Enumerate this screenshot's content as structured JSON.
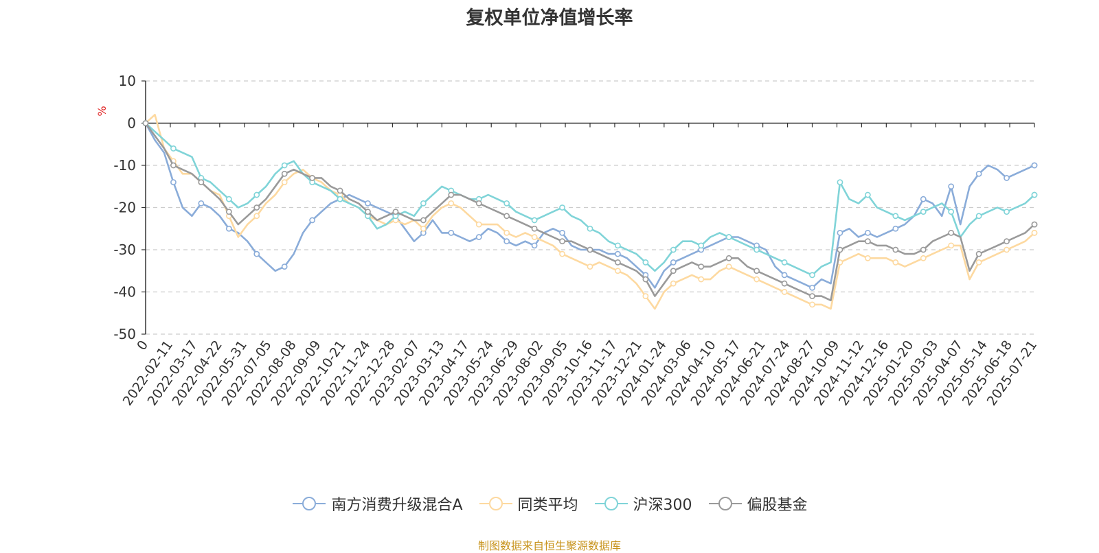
{
  "title": "复权单位净值增长率",
  "footer": "制图数据来自恒生聚源数据库",
  "colors": {
    "nanfang": "#8aacd9",
    "tonglei": "#fdd9a0",
    "hs300": "#80d4d8",
    "pian": "#9a9a9a",
    "unit": "#e02020"
  },
  "chart_data": {
    "type": "line",
    "title": "复权单位净值增长率",
    "ylabel": "%",
    "ylim": [
      -50,
      10
    ],
    "yticks": [
      10,
      0,
      -10,
      -20,
      -30,
      -40,
      -50
    ],
    "grid": true,
    "legend_position": "bottom",
    "x_tick_labels": [
      "0",
      "2022-02-11",
      "2022-03-17",
      "2022-04-22",
      "2022-05-31",
      "2022-07-05",
      "2022-08-08",
      "2022-09-09",
      "2022-10-21",
      "2022-11-24",
      "2022-12-28",
      "2023-02-07",
      "2023-03-13",
      "2023-04-17",
      "2023-05-24",
      "2023-06-29",
      "2023-08-02",
      "2023-09-05",
      "2023-10-16",
      "2023-11-17",
      "2023-12-21",
      "2024-01-24",
      "2024-03-06",
      "2024-04-10",
      "2024-05-17",
      "2024-06-21",
      "2024-07-24",
      "2024-08-27",
      "2024-10-09",
      "2024-11-12",
      "2024-12-16",
      "2025-01-20",
      "2025-03-03",
      "2025-04-07",
      "2025-05-14",
      "2025-06-18",
      "2025-07-21"
    ],
    "series": [
      {
        "name": "南方消费升级混合A",
        "color_key": "nanfang",
        "values": [
          0,
          -4,
          -7,
          -14,
          -20,
          -22,
          -19,
          -20,
          -22,
          -25,
          -26,
          -28,
          -31,
          -33,
          -35,
          -34,
          -31,
          -26,
          -23,
          -21,
          -19,
          -18,
          -17,
          -18,
          -19,
          -20,
          -21,
          -22,
          -25,
          -28,
          -26,
          -23,
          -26,
          -26,
          -27,
          -28,
          -27,
          -25,
          -26,
          -28,
          -29,
          -28,
          -29,
          -26,
          -25,
          -26,
          -29,
          -30,
          -30,
          -30,
          -31,
          -31,
          -32,
          -34,
          -36,
          -39,
          -35,
          -33,
          -32,
          -31,
          -30,
          -29,
          -28,
          -27,
          -27,
          -28,
          -29,
          -30,
          -34,
          -36,
          -37,
          -38,
          -39,
          -37,
          -38,
          -26,
          -25,
          -27,
          -26,
          -27,
          -26,
          -25,
          -24,
          -22,
          -18,
          -19,
          -22,
          -15,
          -24,
          -15,
          -12,
          -10,
          -11,
          -13,
          -12,
          -11,
          -10
        ]
      },
      {
        "name": "同类平均",
        "color_key": "tonglei",
        "values": [
          0,
          2,
          -6,
          -9,
          -12,
          -12,
          -14,
          -16,
          -17,
          -22,
          -27,
          -24,
          -22,
          -19,
          -17,
          -14,
          -12,
          -11,
          -13,
          -14,
          -16,
          -17,
          -19,
          -20,
          -22,
          -23,
          -24,
          -23,
          -24,
          -23,
          -25,
          -22,
          -20,
          -19,
          -20,
          -22,
          -24,
          -24,
          -24,
          -26,
          -27,
          -26,
          -27,
          -28,
          -29,
          -31,
          -32,
          -33,
          -34,
          -33,
          -34,
          -35,
          -36,
          -38,
          -41,
          -44,
          -40,
          -38,
          -37,
          -36,
          -37,
          -37,
          -35,
          -34,
          -35,
          -36,
          -37,
          -38,
          -39,
          -40,
          -41,
          -42,
          -43,
          -43,
          -44,
          -33,
          -32,
          -31,
          -32,
          -32,
          -32,
          -33,
          -34,
          -33,
          -32,
          -31,
          -30,
          -29,
          -29,
          -37,
          -33,
          -32,
          -31,
          -30,
          -29,
          -28,
          -26
        ]
      },
      {
        "name": "沪深300",
        "color_key": "hs300",
        "values": [
          0,
          -2,
          -4,
          -6,
          -7,
          -8,
          -13,
          -14,
          -16,
          -18,
          -20,
          -19,
          -17,
          -15,
          -12,
          -10,
          -9,
          -12,
          -14,
          -15,
          -16,
          -18,
          -19,
          -20,
          -22,
          -25,
          -24,
          -22,
          -21,
          -22,
          -19,
          -17,
          -15,
          -16,
          -17,
          -18,
          -18,
          -17,
          -18,
          -19,
          -21,
          -22,
          -23,
          -22,
          -21,
          -20,
          -22,
          -23,
          -25,
          -26,
          -28,
          -29,
          -30,
          -31,
          -33,
          -35,
          -33,
          -30,
          -28,
          -28,
          -29,
          -27,
          -26,
          -27,
          -28,
          -29,
          -30,
          -31,
          -32,
          -33,
          -34,
          -35,
          -36,
          -34,
          -33,
          -14,
          -18,
          -19,
          -17,
          -20,
          -21,
          -22,
          -23,
          -22,
          -21,
          -20,
          -19,
          -21,
          -27,
          -24,
          -22,
          -21,
          -20,
          -21,
          -20,
          -19,
          -17
        ]
      },
      {
        "name": "偏股基金",
        "color_key": "pian",
        "values": [
          0,
          -3,
          -6,
          -10,
          -11,
          -12,
          -14,
          -16,
          -18,
          -21,
          -24,
          -22,
          -20,
          -18,
          -15,
          -12,
          -11,
          -12,
          -13,
          -13,
          -15,
          -16,
          -18,
          -19,
          -21,
          -23,
          -22,
          -21,
          -22,
          -23,
          -23,
          -21,
          -19,
          -17,
          -17,
          -18,
          -19,
          -20,
          -21,
          -22,
          -23,
          -24,
          -25,
          -26,
          -27,
          -28,
          -28,
          -29,
          -30,
          -31,
          -32,
          -33,
          -34,
          -35,
          -37,
          -41,
          -38,
          -35,
          -34,
          -33,
          -34,
          -34,
          -33,
          -32,
          -32,
          -34,
          -35,
          -36,
          -37,
          -38,
          -39,
          -40,
          -41,
          -41,
          -42,
          -30,
          -29,
          -28,
          -28,
          -29,
          -29,
          -30,
          -31,
          -31,
          -30,
          -28,
          -27,
          -26,
          -27,
          -35,
          -31,
          -30,
          -29,
          -28,
          -27,
          -26,
          -24
        ]
      }
    ]
  }
}
